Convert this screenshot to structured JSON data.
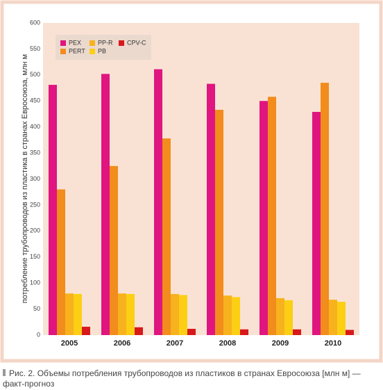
{
  "chart_data": {
    "type": "bar",
    "ylabel": "потребление трубопроводов из пластика в странах Евросоюза, млн м",
    "categories": [
      "2005",
      "2006",
      "2007",
      "2008",
      "2009",
      "2010"
    ],
    "series": [
      {
        "name": "PEX",
        "color": "#e0157f",
        "values": [
          481,
          502,
          511,
          483,
          450,
          429
        ]
      },
      {
        "name": "PERT",
        "color": "#f28c1c",
        "values": [
          280,
          325,
          378,
          433,
          458,
          485
        ]
      },
      {
        "name": "PP-R",
        "color": "#f7b21e",
        "values": [
          80,
          80,
          79,
          76,
          71,
          68
        ]
      },
      {
        "name": "PB",
        "color": "#fccf14",
        "values": [
          79,
          79,
          77,
          73,
          67,
          64
        ]
      },
      {
        "name": "CPV-C",
        "color": "#d7191c",
        "values": [
          16,
          15,
          12,
          11,
          11,
          10
        ]
      }
    ],
    "ylim": [
      0,
      600
    ],
    "yticks": [
      0,
      50,
      100,
      150,
      200,
      250,
      300,
      350,
      400,
      450,
      500,
      550,
      600
    ],
    "grid": false
  },
  "caption": "Рис. 2. Объемы потребления трубопроводов из пластиков в странах Евросоюза [млн м] — факт-прогноз"
}
